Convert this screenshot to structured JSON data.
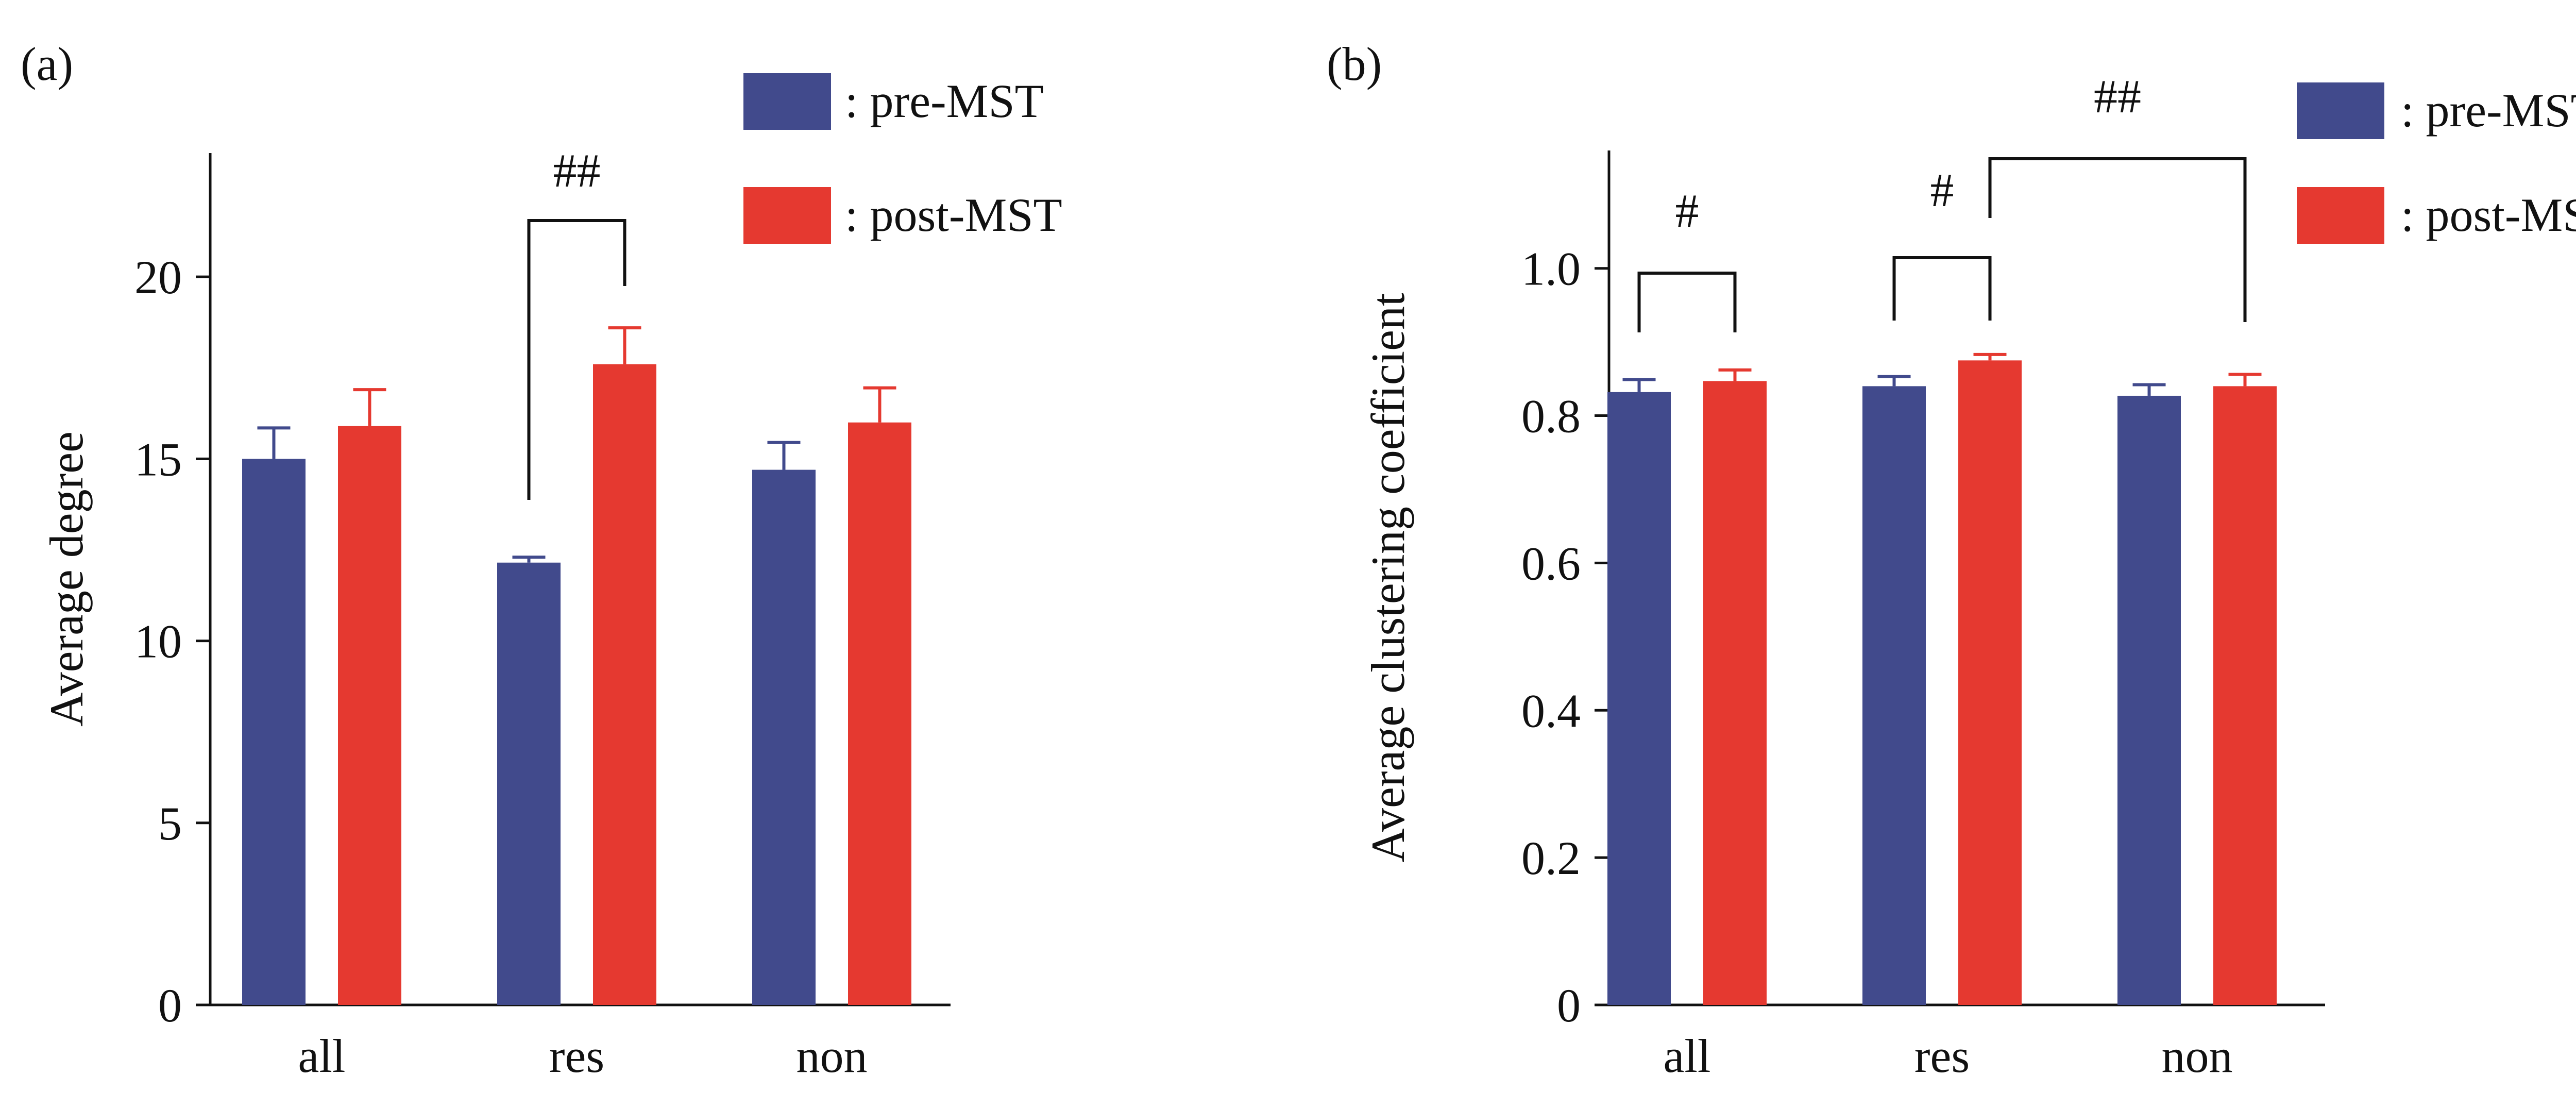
{
  "chart_data": [
    {
      "type": "bar",
      "panel_label": "(a)",
      "title": "",
      "xlabel": "",
      "ylabel": "Average degree",
      "categories": [
        "all",
        "res",
        "non"
      ],
      "ylim": [
        0,
        23.4
      ],
      "yticks": [
        0,
        5,
        10,
        15,
        20
      ],
      "grid": false,
      "legend_position": "top-right",
      "series": [
        {
          "name": ": pre-MST",
          "color": "#414a8c",
          "values": [
            15.0,
            12.15,
            14.7
          ],
          "errors": [
            0.85,
            0.15,
            0.75
          ]
        },
        {
          "name": ": post-MST",
          "color": "#e53930",
          "values": [
            15.9,
            17.6,
            16.0
          ],
          "errors": [
            1.0,
            1.0,
            0.95
          ]
        }
      ],
      "significance": [
        {
          "label": "##",
          "from": "res:pre-MST",
          "to": "res:post-MST"
        }
      ]
    },
    {
      "type": "bar",
      "panel_label": "(b)",
      "title": "",
      "xlabel": "",
      "ylabel": "Average clustering coefficient",
      "categories": [
        "all",
        "res",
        "non"
      ],
      "ylim": [
        0,
        1.16
      ],
      "yticks": [
        0,
        0.2,
        0.4,
        0.6,
        0.8,
        1.0
      ],
      "ytick_labels": [
        "0",
        "0.2",
        "0.4",
        "0.6",
        "0.8",
        "1.0"
      ],
      "grid": false,
      "legend_position": "top-right",
      "series": [
        {
          "name": ": pre-MST",
          "color": "#414a8c",
          "values": [
            0.832,
            0.84,
            0.827
          ],
          "errors": [
            0.017,
            0.013,
            0.015
          ]
        },
        {
          "name": ": post-MST",
          "color": "#e53930",
          "values": [
            0.847,
            0.875,
            0.84
          ],
          "errors": [
            0.015,
            0.008,
            0.016
          ]
        }
      ],
      "significance": [
        {
          "label": "#",
          "from": "all:pre-MST",
          "to": "all:post-MST"
        },
        {
          "label": "#",
          "from": "res:pre-MST",
          "to": "res:post-MST"
        },
        {
          "label": "##",
          "from": "res:post-MST",
          "to": "non:post-MST"
        }
      ]
    }
  ]
}
